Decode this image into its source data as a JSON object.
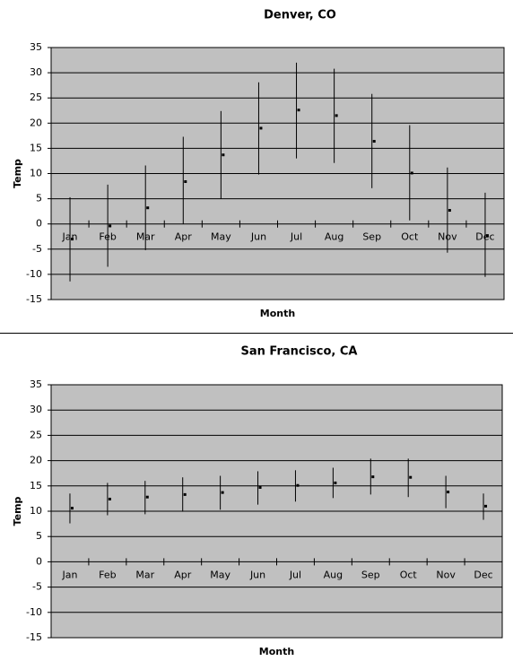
{
  "chart_data": [
    {
      "type": "hlc",
      "title": "Denver, CO",
      "xlabel": "Month",
      "ylabel": "Temp",
      "categories": [
        "Jan",
        "Feb",
        "Mar",
        "Apr",
        "May",
        "Jun",
        "Jul",
        "Aug",
        "Sep",
        "Oct",
        "Nov",
        "Dec"
      ],
      "high": [
        5.3,
        7.8,
        11.6,
        17.3,
        22.4,
        28.1,
        32.0,
        30.8,
        25.8,
        19.6,
        11.2,
        6.2
      ],
      "low": [
        -11.4,
        -8.5,
        -5.2,
        0,
        5.0,
        9.8,
        13.0,
        12.1,
        7.1,
        0.7,
        -5.7,
        -10.5
      ],
      "close": [
        -3.0,
        -0.4,
        3.2,
        8.4,
        13.7,
        19.0,
        22.6,
        21.5,
        16.4,
        10.1,
        2.7,
        -2.3
      ],
      "color": "#000000",
      "background": "#c0c0c0",
      "ylim": [
        -15,
        35
      ],
      "yticks": [
        -15,
        -10,
        -5,
        0,
        5,
        10,
        15,
        20,
        25,
        30,
        35
      ],
      "grid": true
    },
    {
      "type": "hlc",
      "title": "San Francisco, CA",
      "xlabel": "Month",
      "ylabel": "Temp",
      "categories": [
        "Jan",
        "Feb",
        "Mar",
        "Apr",
        "May",
        "Jun",
        "Jul",
        "Aug",
        "Sep",
        "Oct",
        "Nov",
        "Dec"
      ],
      "high": [
        13.5,
        15.6,
        16.0,
        16.7,
        17.0,
        17.9,
        18.1,
        18.6,
        20.4,
        20.4,
        17.0,
        13.5
      ],
      "low": [
        7.6,
        9.2,
        9.4,
        9.9,
        10.3,
        11.3,
        11.9,
        12.6,
        13.3,
        12.8,
        10.6,
        8.3
      ],
      "close": [
        10.6,
        12.4,
        12.8,
        13.3,
        13.7,
        14.7,
        15.1,
        15.6,
        16.8,
        16.7,
        13.8,
        11.0
      ],
      "color": "#000000",
      "background": "#c0c0c0",
      "ylim": [
        -15,
        35
      ],
      "yticks": [
        -15,
        -10,
        -5,
        0,
        5,
        10,
        15,
        20,
        25,
        30,
        35
      ],
      "grid": true
    }
  ]
}
